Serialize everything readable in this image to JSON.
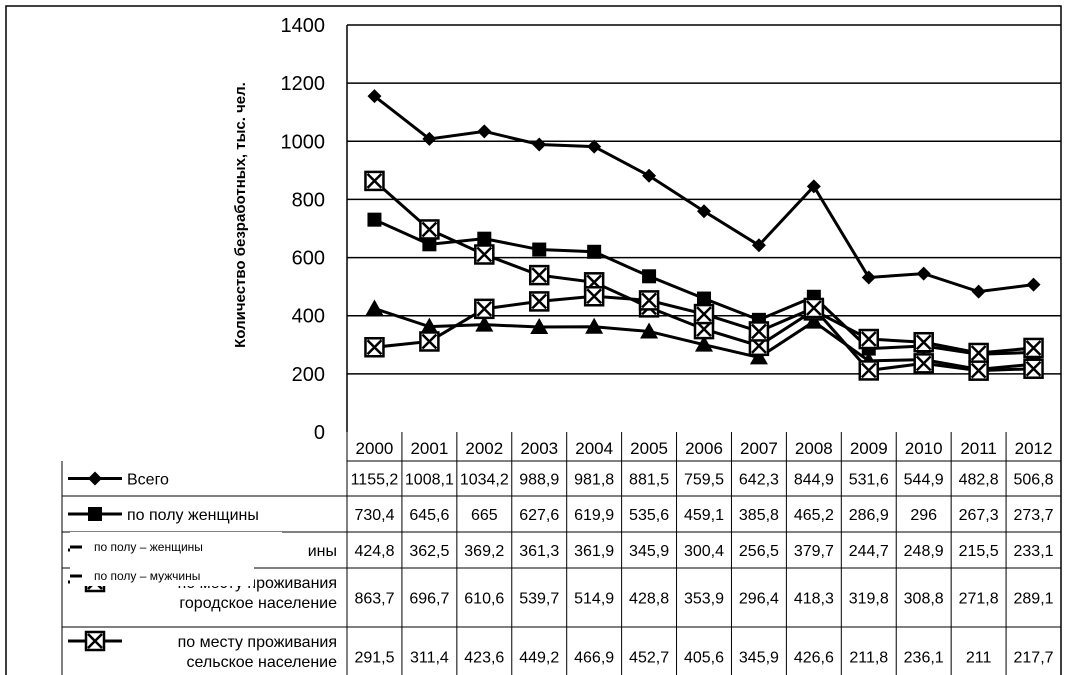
{
  "chart_data": {
    "type": "line",
    "ylabel": "Количество безработных, тыс. чел.",
    "ylim": [
      0,
      1400
    ],
    "yticks": [
      "0",
      "200",
      "400",
      "600",
      "800",
      "1000",
      "1200",
      "1400"
    ],
    "grid": true,
    "categories": [
      "2000",
      "2001",
      "2002",
      "2003",
      "2004",
      "2005",
      "2006",
      "2007",
      "2008",
      "2009",
      "2010",
      "2011",
      "2012"
    ],
    "series": [
      {
        "name": "Всего",
        "label_lines": [
          "Всего"
        ],
        "marker": "diamond",
        "values": [
          1155.2,
          1008.1,
          1034.2,
          988.9,
          981.8,
          881.5,
          759.5,
          642.3,
          844.9,
          531.6,
          544.9,
          482.8,
          506.8
        ],
        "cells": [
          "1155,2",
          "1008,1",
          "1034,2",
          "988,9",
          "981,8",
          "881,5",
          "759,5",
          "642,3",
          "844,9",
          "531,6",
          "544,9",
          "482,8",
          "506,8"
        ]
      },
      {
        "name": "по полу женщины",
        "label_lines": [
          "по полу женщины"
        ],
        "marker": "square",
        "values": [
          730.4,
          645.6,
          665,
          627.6,
          619.9,
          535.6,
          459.1,
          385.8,
          465.2,
          286.9,
          296,
          267.3,
          273.7
        ],
        "cells": [
          "730,4",
          "645,6",
          "665",
          "627,6",
          "619,9",
          "535,6",
          "459,1",
          "385,8",
          "465,2",
          "286,9",
          "296",
          "267,3",
          "273,7"
        ]
      },
      {
        "name": "по полу мужчины",
        "label_lines": [
          "ины"
        ],
        "marker": "triangle",
        "values": [
          424.8,
          362.5,
          369.2,
          361.3,
          361.9,
          345.9,
          300.4,
          256.5,
          379.7,
          244.7,
          248.9,
          215.5,
          233.1
        ],
        "cells": [
          "424,8",
          "362,5",
          "369,2",
          "361,3",
          "361,9",
          "345,9",
          "300,4",
          "256,5",
          "379,7",
          "244,7",
          "248,9",
          "215,5",
          "233,1"
        ]
      },
      {
        "name": "по месту проживания городское население",
        "label_lines": [
          "по месту проживания",
          "городское население"
        ],
        "marker": "x-square",
        "values": [
          863.7,
          696.7,
          610.6,
          539.7,
          514.9,
          428.8,
          353.9,
          296.4,
          418.3,
          319.8,
          308.8,
          271.8,
          289.1
        ],
        "cells": [
          "863,7",
          "696,7",
          "610,6",
          "539,7",
          "514,9",
          "428,8",
          "353,9",
          "296,4",
          "418,3",
          "319,8",
          "308,8",
          "271,8",
          "289,1"
        ]
      },
      {
        "name": "по месту проживания сельское население",
        "label_lines": [
          "по месту проживания",
          "сельское население"
        ],
        "marker": "x-square",
        "values": [
          291.5,
          311.4,
          423.6,
          449.2,
          466.9,
          452.7,
          405.6,
          345.9,
          426.6,
          211.8,
          236.1,
          211,
          217.7
        ],
        "cells": [
          "291,5",
          "311,4",
          "423,6",
          "449,2",
          "466,9",
          "452,7",
          "405,6",
          "345,9",
          "426,6",
          "211,8",
          "236,1",
          "211",
          "217,7"
        ]
      }
    ],
    "overlays": [
      "по полу – женщины",
      "по полу – мужчины"
    ]
  }
}
